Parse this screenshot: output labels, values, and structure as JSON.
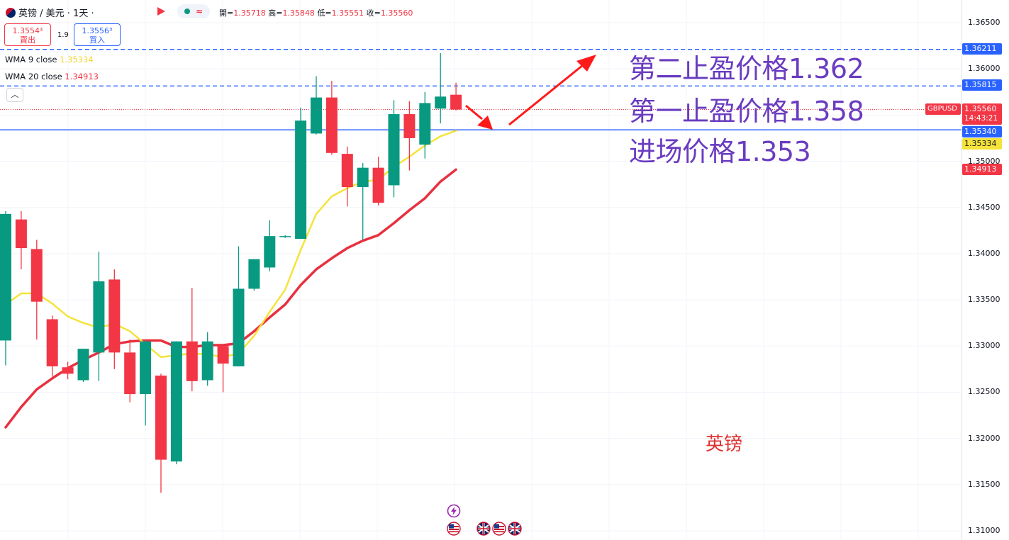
{
  "header": {
    "symbol": "英镑 / 美元 · 1天 ·",
    "ohlc_open_label": "開=",
    "ohlc_open": "1.35718",
    "ohlc_high_label": "高=",
    "ohlc_high": "1.35848",
    "ohlc_low_label": "低=",
    "ohlc_low": "1.35551",
    "ohlc_close_label": "收=",
    "ohlc_close": "1.35560",
    "wave_symbol": "≈"
  },
  "trade": {
    "sell_price": "1.3554⁴",
    "sell_label": "賣出",
    "spread": "1.9",
    "buy_price": "1.3556³",
    "buy_label": "買入"
  },
  "indicators": [
    {
      "label": "WMA 9 close",
      "value": "1.35334",
      "color": "#f2d635"
    },
    {
      "label": "WMA 20 close",
      "value": "1.34913",
      "color": "#f23645"
    }
  ],
  "collapse_icon": "chevron-up-icon",
  "annotations": {
    "tp2": "第二止盈价格1.362",
    "tp1": "第一止盈价格1.358",
    "entry": "进场价格1.353",
    "watermark": "英镑"
  },
  "price_tags": {
    "tp2": "1.36211",
    "tp1": "1.35815",
    "symbol": "GBPUSD",
    "current": "1.35560",
    "countdown": "14:43:21",
    "entry": "1.35340",
    "wma9": "1.35334",
    "wma20": "1.34913"
  },
  "colors": {
    "up": "#089981",
    "down": "#f23645",
    "wma9": "#f5e33a",
    "wma20": "#e8303f",
    "hline": "#2962ff",
    "annotation": "#6a3cc0",
    "arrow": "#ff1a1a"
  },
  "chart_data": {
    "type": "candlestick",
    "y_ticks": [
      "1.36500",
      "1.36000",
      "1.35500",
      "1.35000",
      "1.34500",
      "1.34000",
      "1.33500",
      "1.33000",
      "1.32500",
      "1.32000",
      "1.31500",
      "1.31000"
    ],
    "ylim": [
      1.31,
      1.3665
    ],
    "candles": [
      {
        "o": 1.3306,
        "h": 1.3446,
        "l": 1.3279,
        "c": 1.3443
      },
      {
        "o": 1.3437,
        "h": 1.3446,
        "l": 1.3383,
        "c": 1.3406
      },
      {
        "o": 1.3405,
        "h": 1.3415,
        "l": 1.3307,
        "c": 1.3348
      },
      {
        "o": 1.3329,
        "h": 1.3333,
        "l": 1.3267,
        "c": 1.3278
      },
      {
        "o": 1.3277,
        "h": 1.3283,
        "l": 1.3264,
        "c": 1.327
      },
      {
        "o": 1.3263,
        "h": 1.3297,
        "l": 1.3261,
        "c": 1.3297
      },
      {
        "o": 1.3293,
        "h": 1.3402,
        "l": 1.3262,
        "c": 1.337
      },
      {
        "o": 1.3372,
        "h": 1.3383,
        "l": 1.3275,
        "c": 1.3293
      },
      {
        "o": 1.3293,
        "h": 1.3307,
        "l": 1.3239,
        "c": 1.3248
      },
      {
        "o": 1.3248,
        "h": 1.3306,
        "l": 1.3214,
        "c": 1.3305
      },
      {
        "o": 1.3268,
        "h": 1.327,
        "l": 1.3141,
        "c": 1.3177
      },
      {
        "o": 1.3175,
        "h": 1.3305,
        "l": 1.3172,
        "c": 1.3305
      },
      {
        "o": 1.3305,
        "h": 1.3363,
        "l": 1.3251,
        "c": 1.3262
      },
      {
        "o": 1.3263,
        "h": 1.3315,
        "l": 1.3257,
        "c": 1.3305
      },
      {
        "o": 1.33,
        "h": 1.3301,
        "l": 1.325,
        "c": 1.3281
      },
      {
        "o": 1.3278,
        "h": 1.3408,
        "l": 1.3278,
        "c": 1.3362
      },
      {
        "o": 1.3362,
        "h": 1.3394,
        "l": 1.336,
        "c": 1.3394
      },
      {
        "o": 1.3385,
        "h": 1.3436,
        "l": 1.3381,
        "c": 1.3419
      },
      {
        "o": 1.3419,
        "h": 1.342,
        "l": 1.3417,
        "c": 1.3419
      },
      {
        "o": 1.3416,
        "h": 1.3558,
        "l": 1.3416,
        "c": 1.3544
      },
      {
        "o": 1.353,
        "h": 1.3592,
        "l": 1.3529,
        "c": 1.3569
      },
      {
        "o": 1.3569,
        "h": 1.3587,
        "l": 1.3507,
        "c": 1.3509
      },
      {
        "o": 1.3508,
        "h": 1.3516,
        "l": 1.3451,
        "c": 1.3472
      },
      {
        "o": 1.3472,
        "h": 1.3498,
        "l": 1.3415,
        "c": 1.3493
      },
      {
        "o": 1.3493,
        "h": 1.3505,
        "l": 1.3452,
        "c": 1.3455
      },
      {
        "o": 1.3474,
        "h": 1.3566,
        "l": 1.3461,
        "c": 1.3551
      },
      {
        "o": 1.3551,
        "h": 1.3565,
        "l": 1.349,
        "c": 1.3525
      },
      {
        "o": 1.3518,
        "h": 1.3575,
        "l": 1.3503,
        "c": 1.3563
      },
      {
        "o": 1.3557,
        "h": 1.3617,
        "l": 1.3541,
        "c": 1.357
      },
      {
        "o": 1.3572,
        "h": 1.3585,
        "l": 1.3555,
        "c": 1.3556
      }
    ],
    "wma9": [
      1.3345,
      1.3357,
      1.3357,
      1.3346,
      1.3332,
      1.3325,
      1.332,
      1.3324,
      1.3316,
      1.3302,
      1.3288,
      1.329,
      1.3292,
      1.3291,
      1.3288,
      1.3292,
      1.3311,
      1.3337,
      1.3361,
      1.3404,
      1.3443,
      1.3462,
      1.3471,
      1.3478,
      1.348,
      1.3494,
      1.3505,
      1.3517,
      1.3527,
      1.3533
    ],
    "wma20": [
      1.3212,
      1.3234,
      1.3253,
      1.3265,
      1.3276,
      1.3285,
      1.3293,
      1.3302,
      1.3305,
      1.3306,
      1.3306,
      1.3299,
      1.3299,
      1.3301,
      1.3301,
      1.3303,
      1.3316,
      1.3331,
      1.3345,
      1.3366,
      1.3383,
      1.3395,
      1.3406,
      1.3414,
      1.342,
      1.3433,
      1.3447,
      1.346,
      1.3478,
      1.3491
    ],
    "hlines": [
      1.36211,
      1.35815,
      1.3534
    ],
    "current_price": 1.3556
  }
}
